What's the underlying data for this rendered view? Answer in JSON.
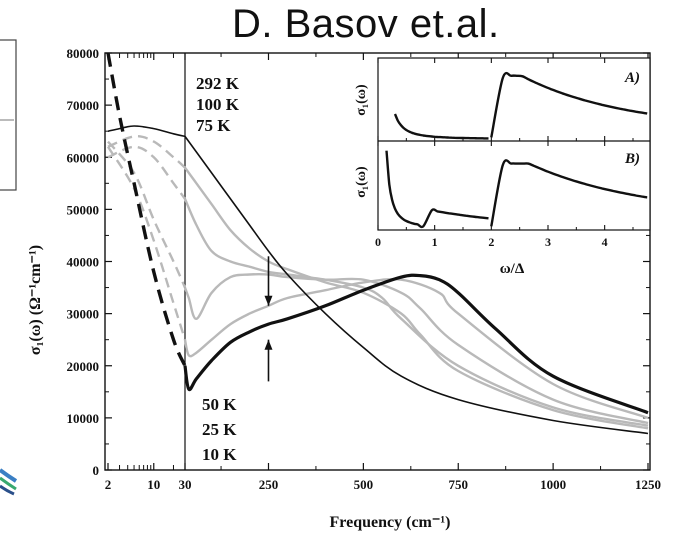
{
  "slide_title": "D. Basov et.al.",
  "chart_data": {
    "type": "line",
    "xlabel": "Frequency (cm⁻¹)",
    "ylabel": "σ₁(ω) (Ω⁻¹cm⁻¹)",
    "x_tick_labels": [
      "2",
      "10",
      "30",
      "250",
      "500",
      "750",
      "1000",
      "1250"
    ],
    "y_tick_labels": [
      "0",
      "10000",
      "20000",
      "30000",
      "40000",
      "50000",
      "60000",
      "70000",
      "80000"
    ],
    "ylim": [
      0,
      80000
    ],
    "x_scale": "logarithmic below 30 cm⁻¹, linear above 30 cm⁻¹",
    "top_temperature_labels": [
      "292 K",
      "100 K",
      "75 K"
    ],
    "bottom_temperature_labels": [
      "50 K",
      "25 K",
      "10 K"
    ],
    "series": [
      {
        "temperature": "292 K",
        "style": "solid black thin",
        "x": [
          2,
          3,
          5,
          10,
          20,
          30,
          60,
          100,
          150,
          200,
          250,
          300,
          400,
          500,
          600,
          750,
          1000,
          1250
        ],
        "y": [
          65000,
          65500,
          66000,
          65500,
          64500,
          64000,
          61000,
          57000,
          52000,
          47000,
          42000,
          37500,
          30000,
          23500,
          18000,
          13500,
          9500,
          7000
        ]
      },
      {
        "temperature": "100 K",
        "style": "gray",
        "x": [
          2,
          5,
          10,
          20,
          30,
          60,
          100,
          150,
          200,
          250,
          300,
          400,
          500,
          600,
          650,
          750,
          1000,
          1250
        ],
        "y": [
          62000,
          64000,
          63000,
          60000,
          58000,
          55000,
          51000,
          46000,
          42500,
          40000,
          38500,
          36000,
          34000,
          30000,
          26000,
          19000,
          11500,
          8000
        ]
      },
      {
        "temperature": "75 K",
        "style": "gray",
        "x": [
          2,
          5,
          10,
          20,
          30,
          60,
          100,
          150,
          200,
          250,
          300,
          400,
          500,
          550,
          600,
          750,
          1000,
          1250
        ],
        "y": [
          60000,
          62000,
          60000,
          55000,
          52000,
          47000,
          42000,
          40000,
          39000,
          38000,
          37500,
          36500,
          35000,
          33000,
          29000,
          20000,
          12000,
          8500
        ]
      },
      {
        "temperature": "50 K",
        "style": "gray",
        "x": [
          2,
          5,
          10,
          20,
          30,
          40,
          60,
          100,
          150,
          200,
          250,
          300,
          400,
          500,
          600,
          650,
          750,
          1000,
          1250
        ],
        "y": [
          63000,
          57000,
          48000,
          40000,
          35000,
          33000,
          29000,
          34000,
          37000,
          37500,
          37500,
          37000,
          36500,
          36500,
          34000,
          31000,
          24000,
          13500,
          9000
        ]
      },
      {
        "temperature": "25 K",
        "style": "gray",
        "x": [
          2,
          5,
          10,
          20,
          30,
          40,
          60,
          100,
          150,
          200,
          250,
          300,
          400,
          500,
          600,
          700,
          750,
          1000,
          1250
        ],
        "y": [
          62000,
          54000,
          44000,
          32000,
          25000,
          22000,
          22500,
          25000,
          28000,
          30000,
          31500,
          33000,
          34500,
          36000,
          36500,
          34000,
          30000,
          16500,
          10000
        ]
      },
      {
        "temperature": "10 K",
        "style": "solid black thick (dashed black below 30 cm⁻¹)",
        "x": [
          2,
          3,
          5,
          10,
          20,
          30,
          40,
          60,
          100,
          150,
          200,
          250,
          300,
          400,
          500,
          600,
          650,
          700,
          750,
          850,
          1000,
          1250
        ],
        "y": [
          80000,
          68000,
          55000,
          38000,
          25000,
          20000,
          15500,
          17500,
          21000,
          24500,
          26500,
          28000,
          29000,
          31500,
          34500,
          37000,
          37300,
          36500,
          34000,
          27000,
          18000,
          11000
        ]
      }
    ],
    "annotations": [
      {
        "type": "arrow",
        "direction": "down",
        "x": 250,
        "y_from": 41000,
        "y_to": 31500
      },
      {
        "type": "arrow",
        "direction": "up",
        "x": 250,
        "y_from": 17000,
        "y_to": 25000
      },
      {
        "type": "vertical line",
        "x": 30
      }
    ],
    "inset": {
      "panels": [
        "A)",
        "B)"
      ],
      "xlabel": "ω/Δ",
      "ylabel": "σ₁(ω)",
      "x_tick_labels": [
        "0",
        "1",
        "2",
        "3",
        "4"
      ],
      "xlim": [
        0,
        4.8
      ]
    }
  }
}
